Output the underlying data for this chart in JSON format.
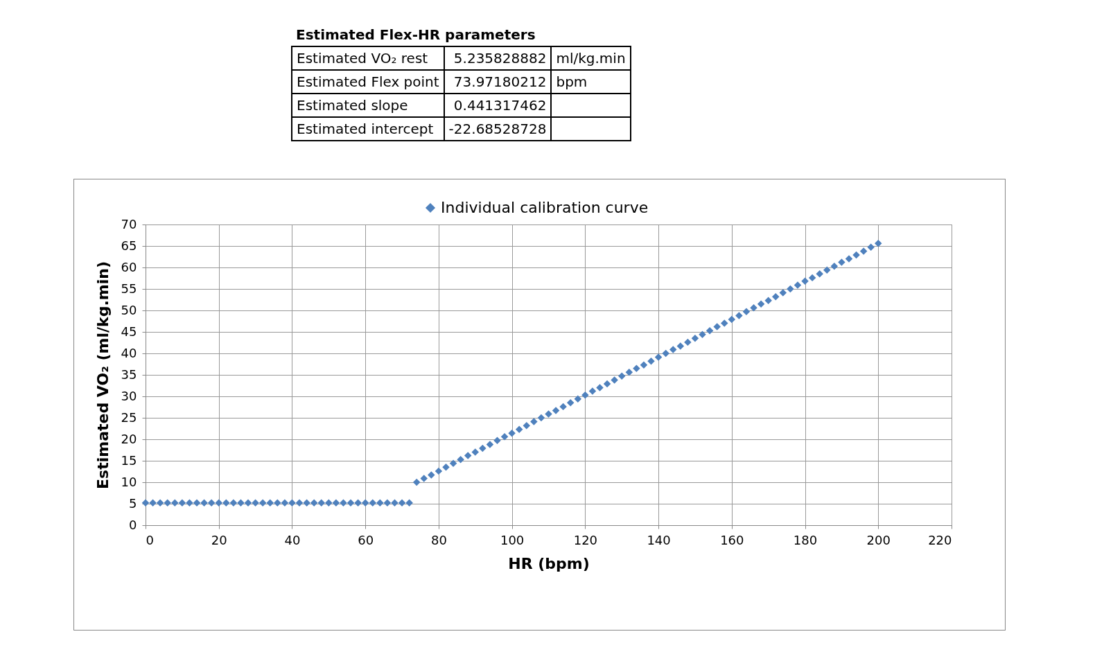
{
  "chart_data": {
    "type": "scatter",
    "xlabel": "HR (bpm)",
    "ylabel": "Estimated VO₂ (ml/kg.min)",
    "annotations": [
      "Estimated Flex-HR parameters",
      "Estimated VO₂ rest",
      "5.235828882 ml/kg.min",
      "Estimated Flex point",
      "73.97180212 bpm",
      "Estimated slope",
      "0.441317462",
      "Estimated intercept",
      "-22.68528728"
    ],
    "series": [
      {
        "name": "Individual calibration curve",
        "color": "#4f81bd",
        "x": [
          0,
          2,
          4,
          6,
          8,
          10,
          12,
          14,
          16,
          18,
          20,
          22,
          24,
          26,
          28,
          30,
          32,
          34,
          36,
          38,
          40,
          42,
          44,
          46,
          48,
          50,
          52,
          54,
          56,
          58,
          60,
          62,
          64,
          66,
          68,
          70,
          72,
          74,
          76,
          78,
          80,
          82,
          84,
          86,
          88,
          90,
          92,
          94,
          96,
          98,
          100,
          102,
          104,
          106,
          108,
          110,
          112,
          114,
          116,
          118,
          120,
          122,
          124,
          126,
          128,
          130,
          132,
          134,
          136,
          138,
          140,
          142,
          144,
          146,
          148,
          150,
          152,
          154,
          156,
          158,
          160,
          162,
          164,
          166,
          168,
          170,
          172,
          174,
          176,
          178,
          180,
          182,
          184,
          186,
          188,
          190,
          192,
          194,
          196,
          198,
          200
        ],
        "values": [
          5.2,
          5.2,
          5.2,
          5.2,
          5.2,
          5.2,
          5.2,
          5.2,
          5.2,
          5.2,
          5.2,
          5.2,
          5.2,
          5.2,
          5.2,
          5.2,
          5.2,
          5.2,
          5.2,
          5.2,
          5.2,
          5.2,
          5.2,
          5.2,
          5.2,
          5.2,
          5.2,
          5.2,
          5.2,
          5.2,
          5.2,
          5.2,
          5.2,
          5.2,
          5.2,
          5.2,
          5.2,
          10.0,
          10.9,
          11.7,
          12.6,
          13.5,
          14.4,
          15.3,
          16.2,
          17.0,
          17.9,
          18.8,
          19.7,
          20.6,
          21.4,
          22.3,
          23.2,
          24.1,
          25.0,
          25.9,
          26.7,
          27.6,
          28.5,
          29.4,
          30.3,
          31.2,
          32.0,
          32.9,
          33.8,
          34.7,
          35.6,
          36.5,
          37.3,
          38.2,
          39.1,
          40.0,
          40.9,
          41.7,
          42.6,
          43.5,
          44.4,
          45.3,
          46.2,
          47.0,
          47.9,
          48.8,
          49.7,
          50.6,
          51.5,
          52.3,
          53.2,
          54.1,
          55.0,
          55.9,
          56.8,
          57.6,
          58.5,
          59.4,
          60.3,
          61.2,
          62.0,
          62.9,
          63.8,
          64.7,
          65.6
        ]
      }
    ],
    "xlim": [
      0,
      220
    ],
    "xticks": [
      0,
      20,
      40,
      60,
      80,
      100,
      120,
      140,
      160,
      180,
      200,
      220
    ],
    "ylim": [
      0,
      70
    ],
    "yticks": [
      0,
      5,
      10,
      15,
      20,
      25,
      30,
      35,
      40,
      45,
      50,
      55,
      60,
      65,
      70
    ],
    "grid": true,
    "legend": "top",
    "marker": "diamond"
  }
}
